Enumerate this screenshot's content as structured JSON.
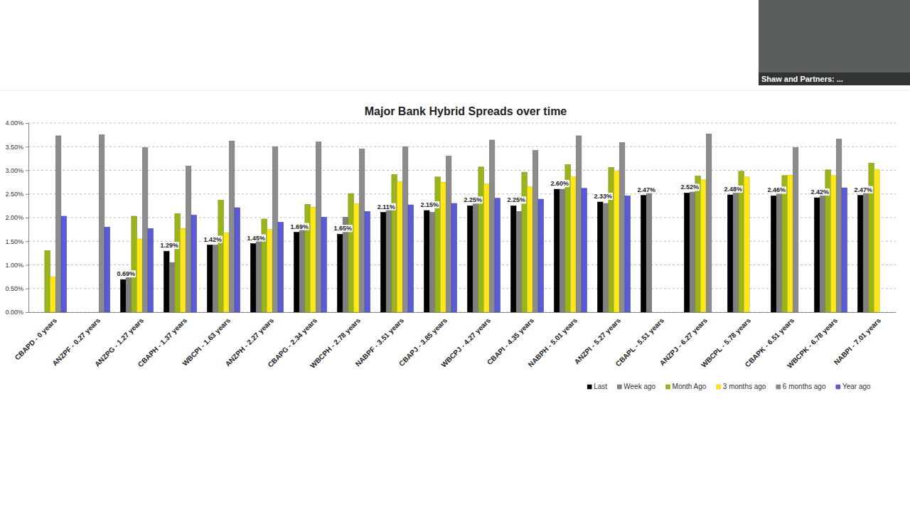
{
  "chart_data": {
    "type": "bar",
    "title": "Major Bank Hybrid Spreads over time",
    "categories": [
      "CBAPD - 0 years",
      "ANZPF - 0.27 years",
      "ANZPG - 1.27 years",
      "CBAPH - 1.37 years",
      "WBCPI - 1.63 years",
      "ANZPH - 2.27 years",
      "CBAPG - 2.34 years",
      "WBCPH - 2.78 years",
      "NABPF - 3.51 years",
      "CBAPJ - 3.85 years",
      "WBCPJ - 4.27 years",
      "CBAPI - 4.35 years",
      "NABPH - 5.01 years",
      "ANZPI - 5.27 years",
      "CBAPL - 5.51 years",
      "ANZPJ - 6.27 years",
      "WBCPL - 5.78 years",
      "CBAPK - 6.51 years",
      "WBCPK - 6.78 years",
      "NABPI - 7.01 years"
    ],
    "series": [
      {
        "name": "Last",
        "color": "#000000",
        "values": [
          null,
          null,
          0.69,
          1.29,
          1.42,
          1.45,
          1.69,
          1.65,
          2.11,
          2.15,
          2.25,
          2.25,
          2.6,
          2.33,
          2.47,
          2.52,
          2.48,
          2.46,
          2.42,
          2.47
        ],
        "value_labels": [
          null,
          null,
          "0.69%",
          "1.29%",
          "1.42%",
          "1.45%",
          "1.69%",
          "1.65%",
          "2.11%",
          "2.15%",
          "2.25%",
          "2.25%",
          "2.60%",
          "2.33%",
          "2.47%",
          "2.52%",
          "2.48%",
          "2.46%",
          "2.42%",
          "2.47%"
        ]
      },
      {
        "name": "Week ago",
        "color": "#808080",
        "values": [
          null,
          null,
          0.85,
          1.05,
          1.42,
          1.53,
          1.83,
          2.01,
          2.17,
          2.11,
          2.35,
          2.13,
          2.6,
          2.3,
          2.55,
          2.54,
          2.55,
          2.62,
          2.58,
          2.58
        ]
      },
      {
        "name": "Month Ago",
        "color": "#9bb41c",
        "values": [
          1.3,
          null,
          2.03,
          2.08,
          2.37,
          1.97,
          2.28,
          2.51,
          2.91,
          2.86,
          3.07,
          2.96,
          3.12,
          3.06,
          null,
          2.88,
          2.98,
          2.89,
          3.01,
          3.15
        ]
      },
      {
        "name": "3 months ago",
        "color": "#ffe81a",
        "values": [
          0.75,
          null,
          1.55,
          1.77,
          1.68,
          1.75,
          2.22,
          2.29,
          2.76,
          2.75,
          2.71,
          2.65,
          2.86,
          2.98,
          null,
          2.8,
          2.86,
          2.9,
          2.89,
          3.02
        ]
      },
      {
        "name": "6 months ago",
        "color": "#8c8c8c",
        "values": [
          3.73,
          3.75,
          3.48,
          3.09,
          3.62,
          3.5,
          3.6,
          3.45,
          3.5,
          3.3,
          3.64,
          3.42,
          3.73,
          3.59,
          null,
          3.77,
          null,
          3.48,
          3.66,
          null
        ]
      },
      {
        "name": "Year ago",
        "color": "#5b5bd6",
        "values": [
          2.03,
          1.8,
          1.77,
          2.05,
          2.21,
          1.9,
          2.01,
          2.13,
          2.27,
          2.3,
          2.41,
          2.39,
          2.62,
          2.46,
          null,
          null,
          null,
          null,
          2.63,
          null
        ]
      }
    ],
    "ylim": [
      0,
      4
    ],
    "yticks": [
      {
        "value": 0,
        "label": "0.00%"
      },
      {
        "value": 0.5,
        "label": "0.50%"
      },
      {
        "value": 1,
        "label": "1.00%"
      },
      {
        "value": 1.5,
        "label": "1.50%"
      },
      {
        "value": 2,
        "label": "2.00%"
      },
      {
        "value": 2.5,
        "label": "2.50%"
      },
      {
        "value": 3,
        "label": "3.00%"
      },
      {
        "value": 3.5,
        "label": "3.50%"
      },
      {
        "value": 4,
        "label": "4.00%"
      }
    ],
    "grid": true,
    "legend": "bottom-right",
    "data_labels": true
  },
  "overlay": {
    "caption": "Shaw and Partners: ..."
  }
}
